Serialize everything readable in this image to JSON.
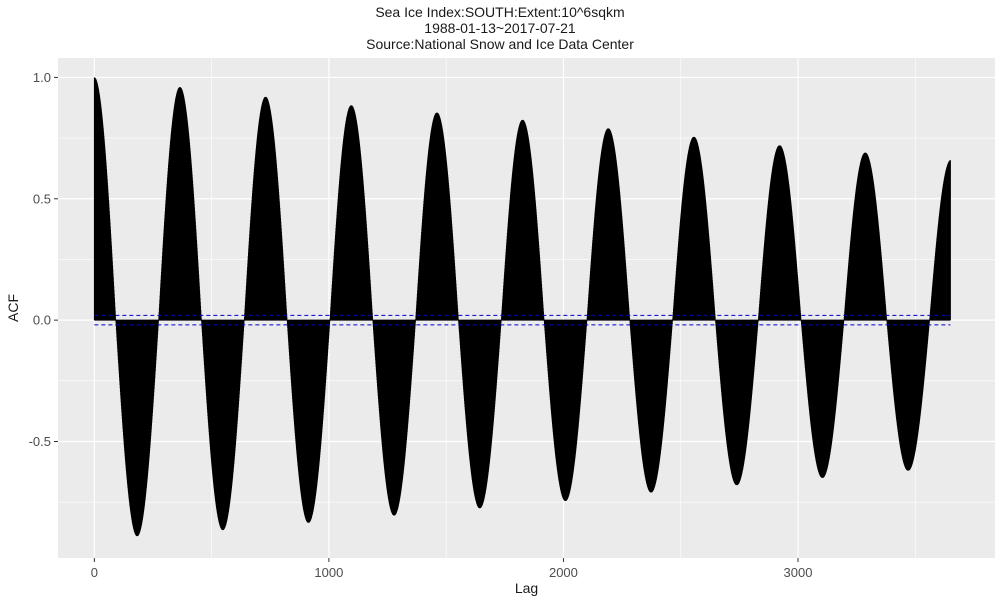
{
  "chart_data": {
    "type": "bar",
    "title": "Sea Ice Index:SOUTH:Extent:10^6sqkm",
    "subtitle_lines": [
      "1988-01-13~2017-07-21",
      "Source:National Snow and Ice Data Center"
    ],
    "xlabel": "Lag",
    "ylabel": "ACF",
    "xlim": [
      -155,
      3840
    ],
    "ylim": [
      -0.98,
      1.08
    ],
    "x_ticks": [
      0,
      1000,
      2000,
      3000
    ],
    "x_tick_labels": [
      "0",
      "1000",
      "2000",
      "3000"
    ],
    "y_ticks": [
      -0.5,
      0.0,
      0.5,
      1.0
    ],
    "y_tick_labels": [
      "-0.5",
      "0.0",
      "0.5",
      "1.0"
    ],
    "grid": true,
    "lag_max": 3650,
    "period": 365.25,
    "peaks": [
      {
        "lag": 0,
        "acf": 1.0
      },
      {
        "lag": 365,
        "acf": 0.96
      },
      {
        "lag": 730,
        "acf": 0.92
      },
      {
        "lag": 1095,
        "acf": 0.885
      },
      {
        "lag": 1461,
        "acf": 0.855
      },
      {
        "lag": 1826,
        "acf": 0.825
      },
      {
        "lag": 2191,
        "acf": 0.79
      },
      {
        "lag": 2557,
        "acf": 0.755
      },
      {
        "lag": 2922,
        "acf": 0.72
      },
      {
        "lag": 3287,
        "acf": 0.69
      },
      {
        "lag": 3650,
        "acf": 0.66
      }
    ],
    "troughs": [
      {
        "lag": 183,
        "acf": -0.89
      },
      {
        "lag": 548,
        "acf": -0.865
      },
      {
        "lag": 913,
        "acf": -0.835
      },
      {
        "lag": 1278,
        "acf": -0.805
      },
      {
        "lag": 1644,
        "acf": -0.775
      },
      {
        "lag": 2009,
        "acf": -0.745
      },
      {
        "lag": 2374,
        "acf": -0.71
      },
      {
        "lag": 2739,
        "acf": -0.68
      },
      {
        "lag": 3105,
        "acf": -0.65
      },
      {
        "lag": 3470,
        "acf": -0.62
      }
    ],
    "confidence_limits": [
      0.0197,
      -0.0197
    ],
    "colors": {
      "bars": "#000000",
      "confidence": "#0000cc",
      "panel": "#ebebeb",
      "grid": "#ffffff"
    }
  }
}
